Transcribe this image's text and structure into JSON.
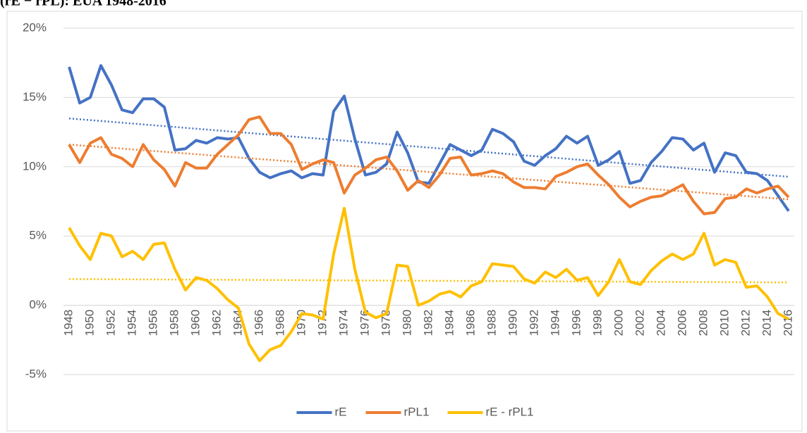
{
  "chart_data": {
    "type": "line",
    "title": "(rE − rPL): EUA 1948-2016",
    "categories": [
      "1948",
      null,
      "1950",
      null,
      "1952",
      null,
      "1954",
      null,
      "1956",
      null,
      "1958",
      null,
      "1960",
      null,
      "1962",
      null,
      "1964",
      null,
      "1966",
      null,
      "1968",
      null,
      "1970",
      null,
      "1972",
      null,
      "1974",
      null,
      "1976",
      null,
      "1978",
      null,
      "1980",
      null,
      "1982",
      null,
      "1984",
      null,
      "1986",
      null,
      "1988",
      null,
      "1990",
      null,
      "1992",
      null,
      "1994",
      null,
      "1996",
      null,
      "1998",
      null,
      "2000",
      null,
      "2002",
      null,
      "2004",
      null,
      "2006",
      null,
      "2008",
      null,
      "2010",
      null,
      "2012",
      null,
      "2014",
      null,
      "2016"
    ],
    "series": [
      {
        "name": "rE",
        "color": "#4472c4",
        "values": [
          17.2,
          14.6,
          15.0,
          17.3,
          15.9,
          14.1,
          13.9,
          14.9,
          14.9,
          14.3,
          11.2,
          11.3,
          11.9,
          11.7,
          12.1,
          12.0,
          12.1,
          10.6,
          9.6,
          9.2,
          9.5,
          9.7,
          9.2,
          9.5,
          9.4,
          14.0,
          15.1,
          12.0,
          9.4,
          9.6,
          10.2,
          12.5,
          11.0,
          8.9,
          8.8,
          10.2,
          11.6,
          11.2,
          10.8,
          11.2,
          12.7,
          12.4,
          11.8,
          10.4,
          10.1,
          10.8,
          11.3,
          12.2,
          11.7,
          12.2,
          10.1,
          10.5,
          11.1,
          8.8,
          9.0,
          10.3,
          11.1,
          12.1,
          12.0,
          11.2,
          11.7,
          9.6,
          11.0,
          10.8,
          9.6,
          9.5,
          9.0,
          7.9,
          6.8
        ]
      },
      {
        "name": "rPL1",
        "color": "#ed7d31",
        "values": [
          11.6,
          10.3,
          11.7,
          12.1,
          10.9,
          10.6,
          10.0,
          11.6,
          10.5,
          9.8,
          8.6,
          10.3,
          9.9,
          9.9,
          10.9,
          11.6,
          12.3,
          13.4,
          13.6,
          12.4,
          12.4,
          11.6,
          9.8,
          10.2,
          10.5,
          10.3,
          8.1,
          9.4,
          9.9,
          10.5,
          10.7,
          9.7,
          8.3,
          9.0,
          8.5,
          9.4,
          10.6,
          10.7,
          9.4,
          9.5,
          9.7,
          9.5,
          8.9,
          8.5,
          8.5,
          8.4,
          9.3,
          9.6,
          10.0,
          10.2,
          9.4,
          8.7,
          7.8,
          7.1,
          7.5,
          7.8,
          7.9,
          8.3,
          8.7,
          7.5,
          6.6,
          6.7,
          7.7,
          7.8,
          8.4,
          8.1,
          8.4,
          8.6,
          7.8
        ]
      },
      {
        "name": "rE - rPL1",
        "color": "#ffc000",
        "values": [
          5.6,
          4.3,
          3.3,
          5.2,
          5.0,
          3.5,
          3.9,
          3.3,
          4.4,
          4.5,
          2.6,
          1.1,
          2.0,
          1.8,
          1.2,
          0.4,
          -0.2,
          -2.8,
          -4.0,
          -3.2,
          -2.9,
          -1.9,
          -0.6,
          -0.7,
          -1.0,
          3.7,
          7.0,
          2.6,
          -0.5,
          -0.9,
          -0.6,
          2.9,
          2.8,
          0.0,
          0.3,
          0.8,
          1.0,
          0.6,
          1.4,
          1.7,
          3.0,
          2.9,
          2.8,
          1.9,
          1.6,
          2.4,
          2.0,
          2.6,
          1.8,
          2.0,
          0.7,
          1.7,
          3.3,
          1.7,
          1.5,
          2.5,
          3.2,
          3.7,
          3.3,
          3.7,
          5.2,
          2.9,
          3.3,
          3.1,
          1.3,
          1.4,
          0.6,
          -0.6,
          -1.0
        ]
      }
    ],
    "ylim": [
      -5,
      20
    ],
    "yticks": [
      {
        "value": -5,
        "label": "-5%"
      },
      {
        "value": 0,
        "label": "0%"
      },
      {
        "value": 5,
        "label": "5%"
      },
      {
        "value": 10,
        "label": "10%"
      },
      {
        "value": 15,
        "label": "15%"
      },
      {
        "value": 20,
        "label": "20%"
      }
    ],
    "grid": true,
    "trendline": true,
    "legend": "bottom"
  }
}
